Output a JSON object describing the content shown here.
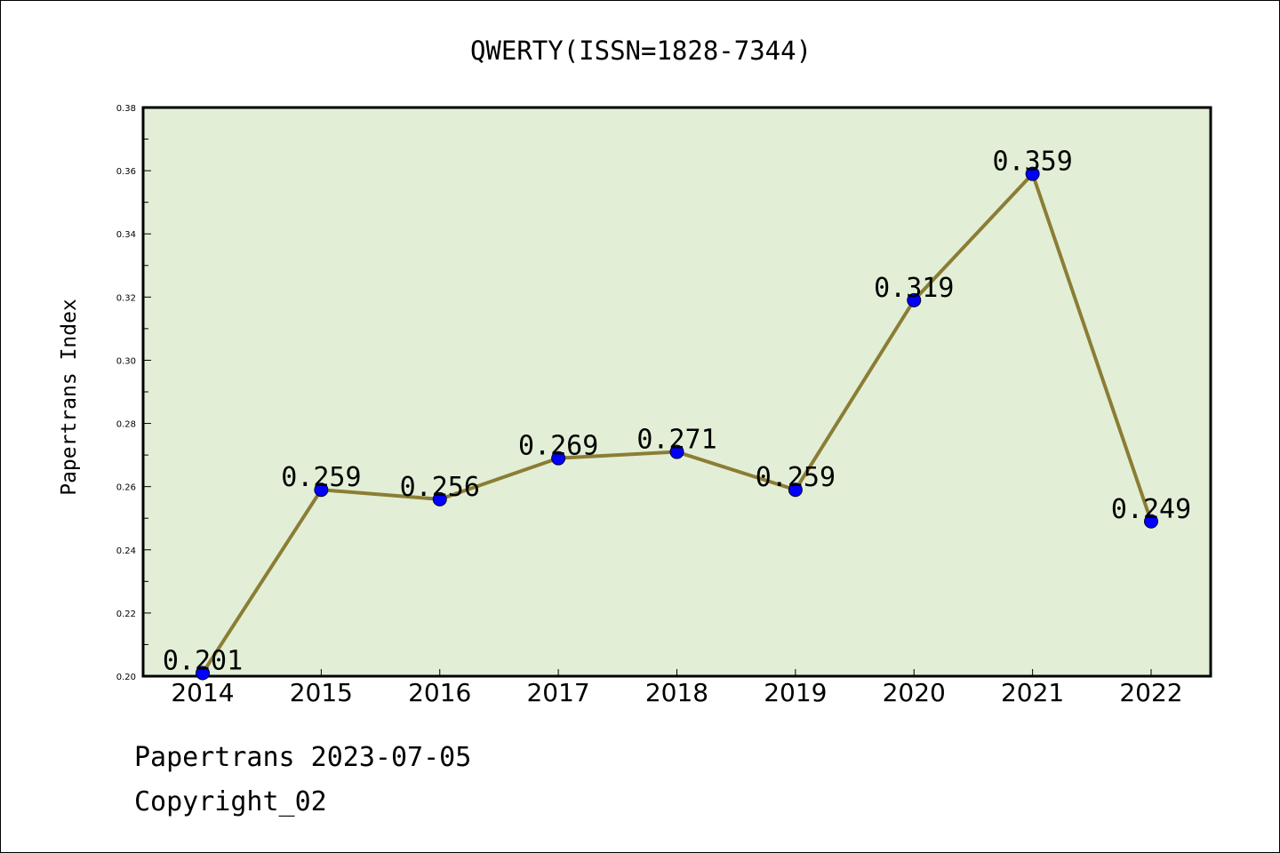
{
  "footer": {
    "source_line": "Papertrans 2023-07-05",
    "copyright_line": "Copyright_02"
  },
  "chart_data": {
    "type": "line",
    "title": "QWERTY(ISSN=1828-7344)",
    "xlabel": "",
    "ylabel": "Papertrans Index",
    "categories": [
      "2014",
      "2015",
      "2016",
      "2017",
      "2018",
      "2019",
      "2020",
      "2021",
      "2022"
    ],
    "series": [
      {
        "values": [
          0.201,
          0.259,
          0.256,
          0.269,
          0.271,
          0.259,
          0.319,
          0.359,
          0.249
        ],
        "data_labels": [
          "0.201",
          "0.259",
          "0.256",
          "0.269",
          "0.271",
          "0.259",
          "0.319",
          "0.359",
          "0.249"
        ],
        "line_color": "#8b7d35",
        "marker_color": "#0000ff"
      }
    ],
    "ylim": [
      0.2,
      0.38
    ],
    "y_ticks": [
      0.2,
      0.22,
      0.24,
      0.26,
      0.28,
      0.3,
      0.32,
      0.34,
      0.36,
      0.38
    ],
    "y_tick_labels": [
      "0.20",
      "0.22",
      "0.24",
      "0.26",
      "0.28",
      "0.30",
      "0.32",
      "0.34",
      "0.36",
      "0.38"
    ],
    "grid": false,
    "legend": "none",
    "plot_background": "#e2efd6"
  }
}
